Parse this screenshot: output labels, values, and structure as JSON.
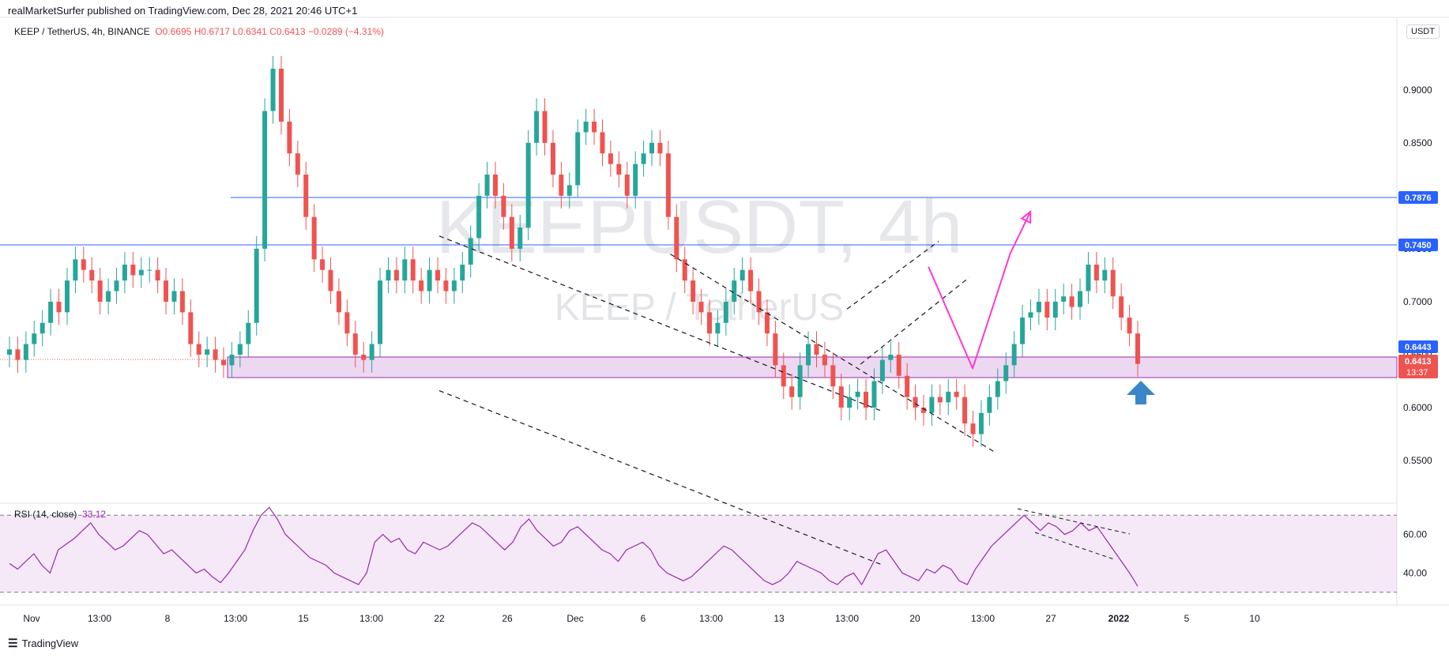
{
  "header": {
    "published": "realMarketSurfer published on TradingView.com, Dec 28, 2021 20:46 UTC+1"
  },
  "legend": {
    "symbol": "KEEP / TetherUS, 4h, BINANCE",
    "open": "O0.6695",
    "high": "H0.6717",
    "low": "L0.6341",
    "close": "C0.6413",
    "change": "−0.0289 (−4.31%)"
  },
  "unit_badge": "USDT",
  "watermark": {
    "line1": "KEEPUSDT, 4h",
    "line2": "KEEP / TetherUS"
  },
  "rsi_legend": {
    "label": "RSI (14, close)",
    "value": "33.12"
  },
  "footer": {
    "brand": "TradingView"
  },
  "price_labels": {
    "resistance_upper": "0.7876",
    "resistance_lower": "0.7450",
    "zone_top": "0.6443",
    "last_price": "0.6413",
    "countdown": "13:37"
  },
  "colors": {
    "up": "#26a69a",
    "down": "#ef5350",
    "level_line": "#2962ff",
    "projection": "#ff38d4",
    "arrow": "#3a86c8",
    "rsi": "#9c27b0"
  },
  "chart_data": {
    "type": "candlestick",
    "price_axis": {
      "ticks": [
        "0.9000",
        "0.8500",
        "0.8000",
        "0.7500",
        "0.7000",
        "0.6500",
        "0.6000",
        "0.5500"
      ],
      "range": [
        0.515,
        0.955
      ]
    },
    "time_axis": {
      "ticks": [
        "Nov",
        "13:00",
        "8",
        "13:00",
        "15",
        "13:00",
        "22",
        "26",
        "Dec",
        "6",
        "13:00",
        "13",
        "13:00",
        "20",
        "13:00",
        "27",
        "2022",
        "5",
        "10"
      ]
    },
    "horizontal_levels": [
      0.7876,
      0.745
    ],
    "support_zone": [
      0.625,
      0.6443
    ],
    "last_price": 0.6413,
    "close_path": [
      0.655,
      0.645,
      0.66,
      0.67,
      0.68,
      0.7,
      0.69,
      0.72,
      0.74,
      0.73,
      0.72,
      0.7,
      0.71,
      0.72,
      0.735,
      0.725,
      0.73,
      0.73,
      0.72,
      0.7,
      0.71,
      0.69,
      0.66,
      0.65,
      0.655,
      0.645,
      0.64,
      0.65,
      0.66,
      0.68,
      0.75,
      0.88,
      0.92,
      0.87,
      0.84,
      0.82,
      0.78,
      0.74,
      0.73,
      0.71,
      0.69,
      0.67,
      0.65,
      0.645,
      0.66,
      0.72,
      0.73,
      0.72,
      0.74,
      0.72,
      0.71,
      0.73,
      0.72,
      0.71,
      0.72,
      0.735,
      0.76,
      0.8,
      0.82,
      0.8,
      0.78,
      0.75,
      0.77,
      0.85,
      0.88,
      0.85,
      0.82,
      0.8,
      0.81,
      0.86,
      0.87,
      0.86,
      0.84,
      0.83,
      0.82,
      0.8,
      0.83,
      0.84,
      0.85,
      0.84,
      0.78,
      0.74,
      0.72,
      0.7,
      0.69,
      0.67,
      0.68,
      0.7,
      0.72,
      0.73,
      0.71,
      0.69,
      0.67,
      0.64,
      0.62,
      0.61,
      0.64,
      0.66,
      0.65,
      0.64,
      0.62,
      0.6,
      0.61,
      0.615,
      0.6,
      0.625,
      0.645,
      0.65,
      0.63,
      0.61,
      0.6,
      0.595,
      0.61,
      0.605,
      0.615,
      0.61,
      0.585,
      0.575,
      0.595,
      0.61,
      0.625,
      0.64,
      0.66,
      0.685,
      0.69,
      0.7,
      0.685,
      0.7,
      0.705,
      0.695,
      0.71,
      0.735,
      0.72,
      0.73,
      0.705,
      0.685,
      0.67,
      0.6413
    ],
    "channel_lines": [
      [
        [
          6,
          0.762
        ],
        [
          12.5,
          0.597
        ]
      ],
      [
        [
          6,
          0.616
        ],
        [
          12.5,
          0.452
        ]
      ],
      [
        [
          9.4,
          0.745
        ],
        [
          14.2,
          0.557
        ]
      ],
      [
        [
          12,
          0.693
        ],
        [
          13.35,
          0.757
        ]
      ],
      [
        [
          12.2,
          0.641
        ],
        [
          13.8,
          0.723
        ]
      ]
    ],
    "projection": [
      [
        13.2,
        0.733
      ],
      [
        13.85,
        0.637
      ],
      [
        14.4,
        0.745
      ],
      [
        14.7,
        0.785
      ]
    ],
    "rsi": {
      "levels": [
        70,
        30
      ],
      "ticks": [
        "60.00",
        "40.00"
      ],
      "range": [
        25,
        75
      ],
      "last": 33.12,
      "values": [
        45,
        42,
        46,
        50,
        44,
        40,
        52,
        55,
        58,
        62,
        66,
        60,
        56,
        52,
        54,
        58,
        62,
        60,
        55,
        50,
        52,
        48,
        44,
        40,
        42,
        38,
        35,
        40,
        46,
        52,
        62,
        70,
        74,
        68,
        60,
        56,
        52,
        48,
        46,
        44,
        40,
        38,
        36,
        34,
        40,
        56,
        60,
        56,
        58,
        52,
        50,
        56,
        54,
        52,
        54,
        58,
        62,
        66,
        64,
        60,
        56,
        52,
        56,
        64,
        68,
        62,
        58,
        54,
        56,
        62,
        64,
        60,
        56,
        52,
        50,
        46,
        52,
        54,
        56,
        52,
        44,
        40,
        38,
        36,
        38,
        42,
        46,
        50,
        54,
        52,
        48,
        44,
        40,
        36,
        34,
        36,
        40,
        46,
        44,
        42,
        40,
        36,
        34,
        38,
        40,
        34,
        42,
        50,
        52,
        46,
        40,
        38,
        36,
        42,
        40,
        44,
        42,
        36,
        34,
        42,
        48,
        54,
        58,
        62,
        66,
        70,
        66,
        62,
        66,
        64,
        60,
        62,
        66,
        62,
        64,
        58,
        52,
        46,
        40,
        33.12
      ]
    }
  }
}
